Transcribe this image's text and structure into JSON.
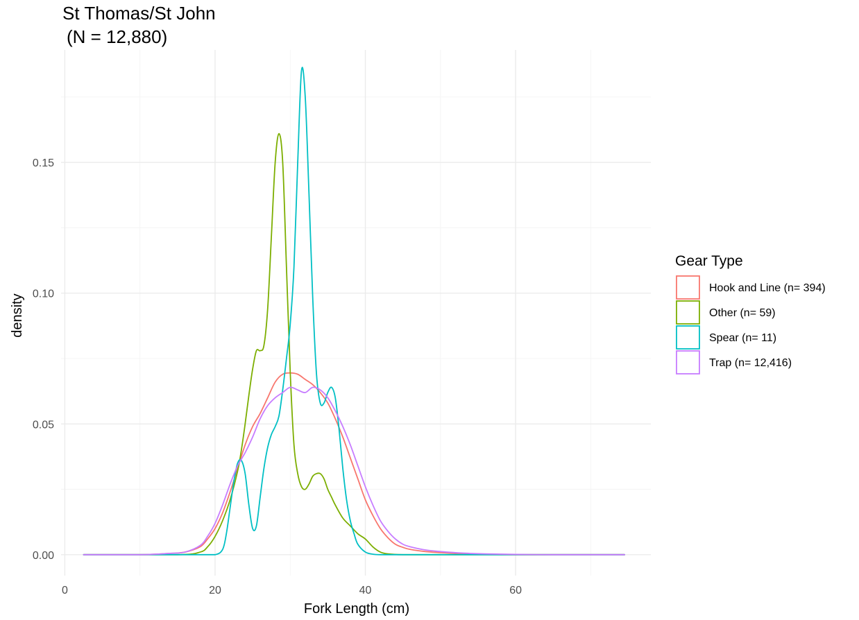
{
  "chart_data": {
    "type": "line",
    "title": "St Thomas/St John",
    "subtitle": "(N = 12,880)",
    "xlabel": "Fork Length (cm)",
    "ylabel": "density",
    "xlim": [
      -0.5,
      78
    ],
    "ylim": [
      -0.008,
      0.193
    ],
    "xticks": [
      0,
      20,
      40,
      60
    ],
    "xtick_labels": [
      "0",
      "20",
      "40",
      "60"
    ],
    "yticks": [
      0,
      0.05,
      0.1,
      0.15
    ],
    "ytick_labels": [
      "0.00",
      "0.05",
      "0.10",
      "0.15"
    ],
    "grid": true,
    "legend": {
      "title": "Gear Type",
      "position": "right"
    },
    "series": [
      {
        "name": "Hook and Line (n= 394)",
        "color": "#F8766D",
        "x": [
          2.5,
          10,
          14,
          16,
          18,
          19,
          20,
          21,
          22,
          23,
          24,
          25,
          26,
          27,
          28,
          29,
          30,
          31,
          32,
          33,
          34,
          35,
          36,
          37,
          38,
          39,
          40,
          41,
          42,
          43,
          44,
          45,
          46,
          48,
          50,
          53,
          56,
          60,
          65,
          70,
          74.5
        ],
        "y": [
          0,
          0,
          0.0005,
          0.001,
          0.003,
          0.006,
          0.01,
          0.016,
          0.024,
          0.033,
          0.042,
          0.049,
          0.054,
          0.06,
          0.066,
          0.069,
          0.0695,
          0.069,
          0.067,
          0.065,
          0.062,
          0.058,
          0.052,
          0.045,
          0.037,
          0.029,
          0.021,
          0.015,
          0.01,
          0.0065,
          0.004,
          0.0028,
          0.002,
          0.0012,
          0.0008,
          0.0003,
          0.0001,
          0,
          0,
          0,
          0
        ]
      },
      {
        "name": "Other (n= 59)",
        "color": "#7CAE00",
        "x": [
          2.5,
          15,
          18,
          19,
          20,
          21,
          22,
          23,
          23.5,
          24,
          24.5,
          25,
          25.5,
          26,
          26.5,
          27,
          27.5,
          28,
          28.5,
          29,
          29.5,
          30,
          30.5,
          31,
          31.5,
          32,
          32.5,
          33,
          33.5,
          34,
          34.5,
          35,
          35.5,
          36,
          37,
          38,
          39,
          40,
          41,
          42,
          43,
          45,
          50,
          60,
          74.5
        ],
        "y": [
          0,
          0,
          0.001,
          0.003,
          0.007,
          0.013,
          0.021,
          0.032,
          0.04,
          0.05,
          0.061,
          0.071,
          0.078,
          0.078,
          0.08,
          0.094,
          0.122,
          0.15,
          0.161,
          0.15,
          0.11,
          0.07,
          0.042,
          0.031,
          0.026,
          0.025,
          0.027,
          0.03,
          0.031,
          0.031,
          0.029,
          0.025,
          0.022,
          0.019,
          0.014,
          0.011,
          0.008,
          0.006,
          0.003,
          0.001,
          0.0003,
          0,
          0,
          0,
          0
        ]
      },
      {
        "name": "Spear (n= 11)",
        "color": "#00BFC4",
        "x": [
          2.5,
          18,
          20,
          21,
          21.5,
          22,
          22.5,
          23,
          23.5,
          24,
          24.5,
          25,
          25.5,
          26,
          26.5,
          27,
          27.5,
          28,
          28.5,
          29,
          29.5,
          30,
          30.5,
          31,
          31.5,
          32,
          32.5,
          33,
          33.5,
          34,
          34.5,
          35,
          35.5,
          36,
          36.5,
          37,
          37.5,
          38,
          38.5,
          39,
          40,
          41,
          42,
          45,
          60,
          74.5
        ],
        "y": [
          0,
          0,
          0,
          0.002,
          0.008,
          0.018,
          0.028,
          0.035,
          0.036,
          0.031,
          0.019,
          0.01,
          0.011,
          0.022,
          0.033,
          0.041,
          0.046,
          0.049,
          0.053,
          0.063,
          0.075,
          0.088,
          0.11,
          0.15,
          0.185,
          0.175,
          0.138,
          0.098,
          0.069,
          0.058,
          0.058,
          0.062,
          0.064,
          0.06,
          0.048,
          0.033,
          0.021,
          0.013,
          0.008,
          0.004,
          0.001,
          0.0002,
          0,
          0,
          0,
          0
        ]
      },
      {
        "name": "Trap (n= 12,416)",
        "color": "#C77CFF",
        "x": [
          2.5,
          10,
          14,
          16,
          18,
          19,
          20,
          21,
          22,
          23,
          24,
          25,
          26,
          27,
          28,
          29,
          30,
          31,
          32,
          33,
          34,
          35,
          36,
          37,
          38,
          39,
          40,
          41,
          42,
          43,
          44,
          45,
          46,
          48,
          50,
          53,
          56,
          60,
          65,
          70,
          74.5
        ],
        "y": [
          0,
          0,
          0.0005,
          0.001,
          0.0035,
          0.007,
          0.012,
          0.019,
          0.027,
          0.034,
          0.039,
          0.045,
          0.052,
          0.057,
          0.06,
          0.062,
          0.064,
          0.063,
          0.062,
          0.064,
          0.063,
          0.06,
          0.055,
          0.049,
          0.042,
          0.034,
          0.026,
          0.019,
          0.013,
          0.009,
          0.006,
          0.004,
          0.003,
          0.0018,
          0.0012,
          0.0006,
          0.0003,
          0.0001,
          0,
          0,
          0
        ]
      }
    ]
  }
}
